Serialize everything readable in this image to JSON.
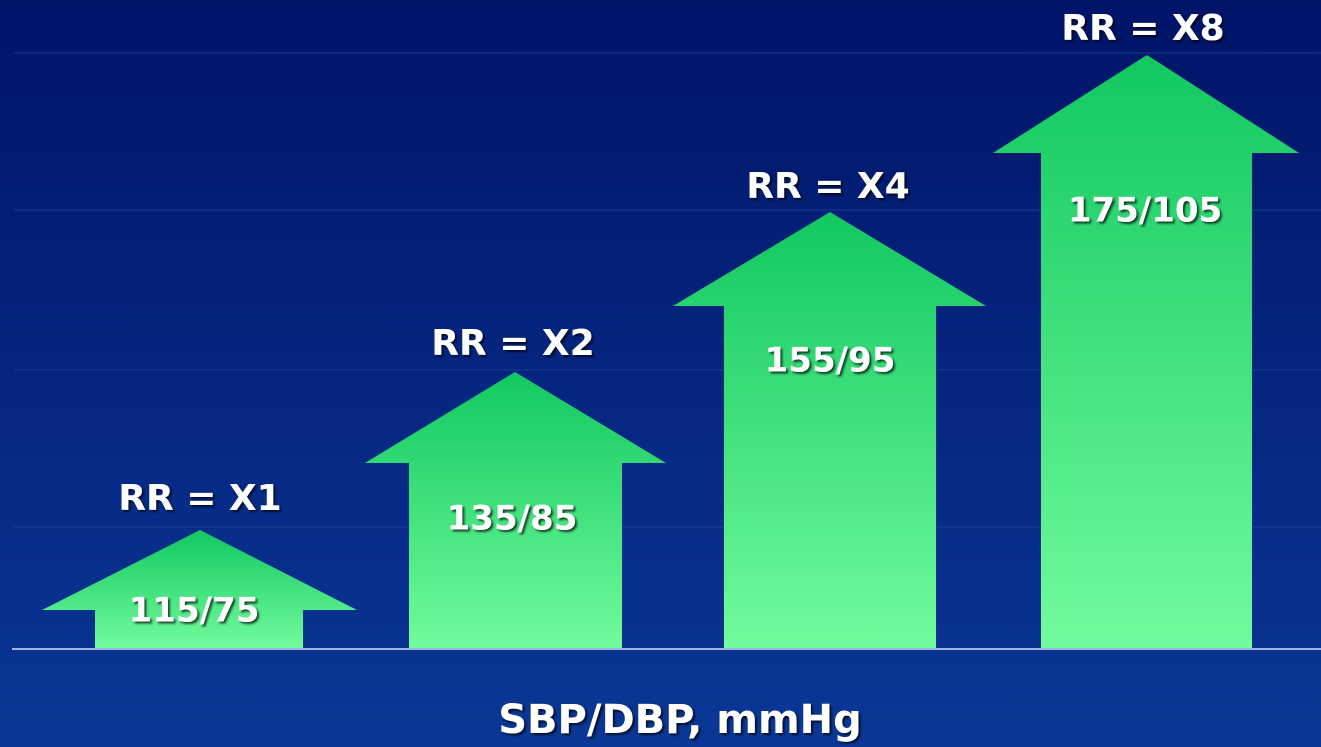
{
  "arrows": [
    {
      "label": "RR = X1",
      "pressure": "115/75"
    },
    {
      "label": "RR = X2",
      "pressure": "135/85"
    },
    {
      "label": "RR = X4",
      "pressure": "155/95"
    },
    {
      "label": "RR = X8",
      "pressure": "175/105"
    }
  ],
  "axis_label": "SBP/DBP, mmHg"
}
